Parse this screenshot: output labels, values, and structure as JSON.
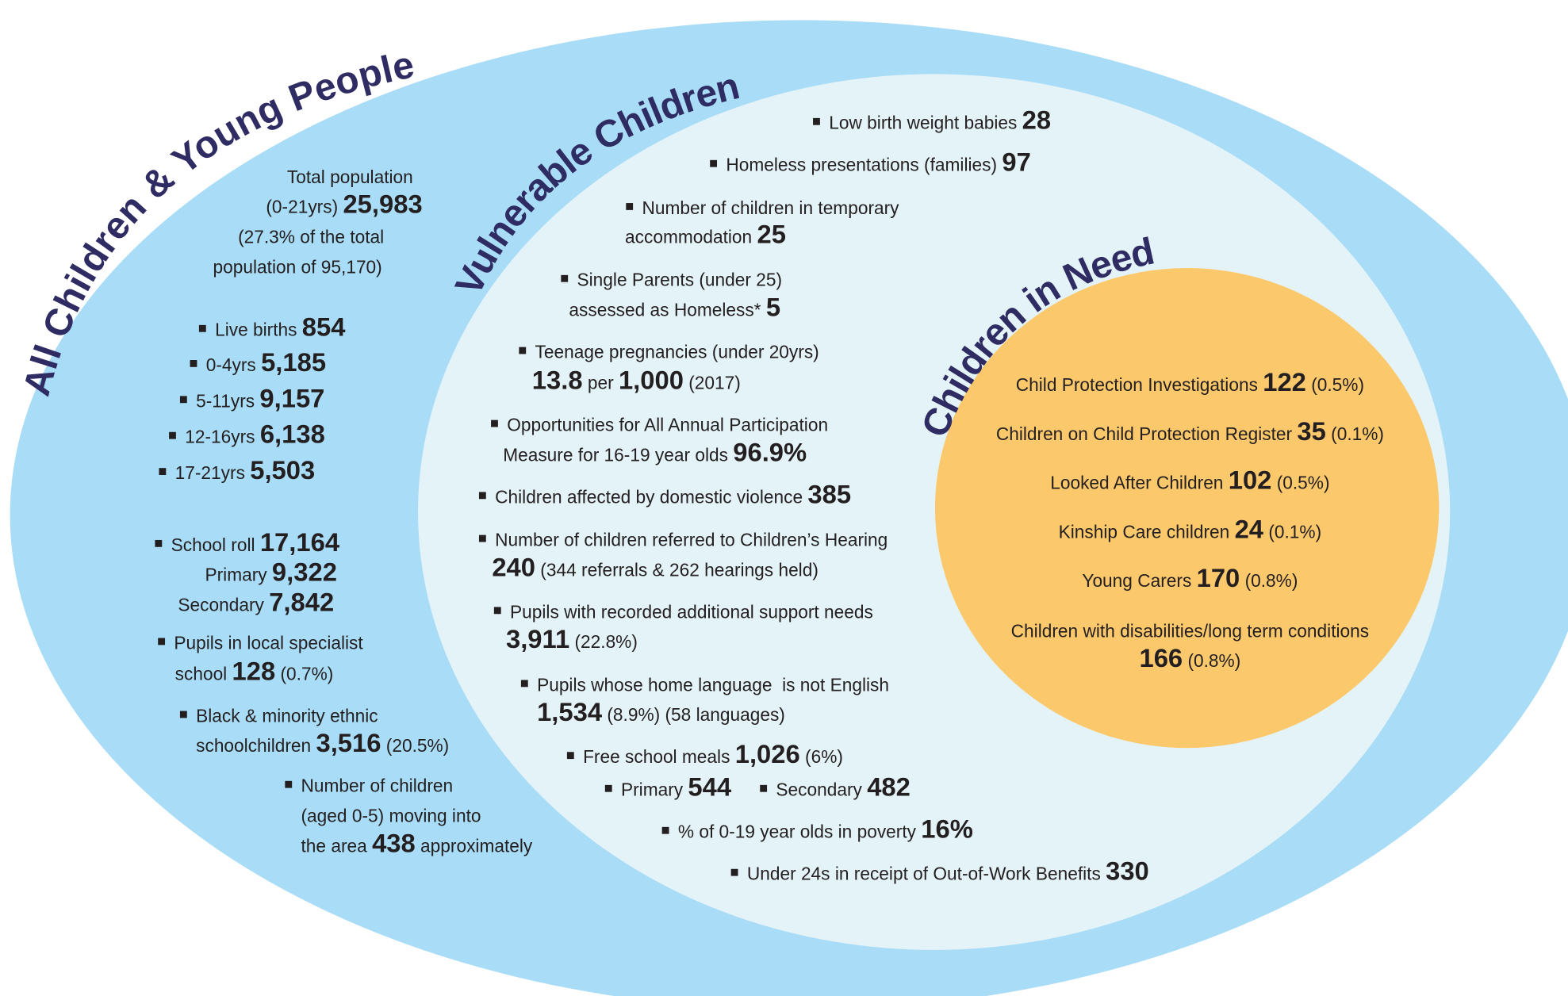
{
  "outer": {
    "title": "All Children & Young People",
    "items": [
      {
        "lines": [
          [
            "Total population"
          ],
          [
            "(0-21yrs) ",
            {
              "big": "25,983"
            }
          ],
          [
            "(27.3% of the total"
          ],
          [
            "population of 95,170)"
          ]
        ]
      },
      {
        "lines": [
          [
            "Live births ",
            {
              "big": "854"
            }
          ]
        ]
      },
      {
        "lines": [
          [
            "0-4yrs ",
            {
              "big": "5,185"
            }
          ]
        ]
      },
      {
        "lines": [
          [
            "5-11yrs ",
            {
              "big": "9,157"
            }
          ]
        ]
      },
      {
        "lines": [
          [
            "12-16yrs ",
            {
              "big": "6,138"
            }
          ]
        ]
      },
      {
        "lines": [
          [
            "17-21yrs ",
            {
              "big": "5,503"
            }
          ]
        ]
      },
      {
        "lines": [
          [
            "School roll ",
            {
              "big": "17,164"
            }
          ],
          [
            "Primary ",
            {
              "big": "9,322"
            }
          ],
          [
            "Secondary ",
            {
              "big": "7,842"
            }
          ]
        ]
      },
      {
        "lines": [
          [
            "Pupils in local specialist"
          ],
          [
            "school ",
            {
              "big": "128"
            },
            " (0.7%)"
          ]
        ]
      },
      {
        "lines": [
          [
            "Black & minority ethnic"
          ],
          [
            "schoolchildren ",
            {
              "big": "3,516"
            },
            " (20.5%)"
          ]
        ]
      },
      {
        "lines": [
          [
            "Number of children"
          ],
          [
            "(aged 0-5) moving into"
          ],
          [
            "the area ",
            {
              "big": "438"
            },
            " approximately"
          ]
        ]
      }
    ]
  },
  "middle": {
    "title": "Vulnerable Children",
    "items": [
      {
        "lines": [
          [
            "Low birth weight babies ",
            {
              "big": "28"
            }
          ]
        ]
      },
      {
        "lines": [
          [
            "Homeless presentations (families) ",
            {
              "big": "97"
            }
          ]
        ]
      },
      {
        "lines": [
          [
            "Number of children in temporary"
          ],
          [
            "accommodation ",
            {
              "big": "25"
            }
          ]
        ]
      },
      {
        "lines": [
          [
            "Single Parents (under 25)"
          ],
          [
            "assessed as Homeless* ",
            {
              "big": "5"
            }
          ]
        ]
      },
      {
        "lines": [
          [
            "Teenage pregnancies (under 20yrs)"
          ],
          [
            {
              "big": "13.8"
            },
            " per ",
            {
              "big": "1,000"
            },
            " (2017)"
          ]
        ]
      },
      {
        "lines": [
          [
            "Opportunities for All Annual Participation"
          ],
          [
            "Measure for 16-19 year olds ",
            {
              "big": "96.9%"
            }
          ]
        ]
      },
      {
        "lines": [
          [
            "Children affected by domestic violence ",
            {
              "big": "385"
            }
          ]
        ]
      },
      {
        "lines": [
          [
            "Number of children referred to Children’s Hearing"
          ],
          [
            {
              "big": "240"
            },
            " (344 referrals & 262 hearings held)"
          ]
        ]
      },
      {
        "lines": [
          [
            "Pupils with recorded additional support needs"
          ],
          [
            {
              "big": "3,911"
            },
            " (22.8%)"
          ]
        ]
      },
      {
        "lines": [
          [
            "Pupils whose home language  is not English"
          ],
          [
            {
              "big": "1,534"
            },
            " (8.9%) (58 languages)"
          ]
        ]
      },
      {
        "lines": [
          [
            "Free school meals ",
            {
              "big": "1,026"
            },
            " (6%)"
          ]
        ]
      },
      {
        "lines": [
          [
            "Primary ",
            {
              "big": "544"
            }
          ]
        ]
      },
      {
        "lines": [
          [
            "Secondary ",
            {
              "big": "482"
            }
          ]
        ]
      },
      {
        "lines": [
          [
            "% of 0-19 year olds in poverty ",
            {
              "big": "16%"
            }
          ]
        ]
      },
      {
        "lines": [
          [
            "Under 24s in receipt of Out-of-Work Benefits ",
            {
              "big": "330"
            }
          ]
        ]
      }
    ]
  },
  "inner": {
    "title": "Children in Need",
    "items": [
      {
        "lines": [
          [
            "Child Protection Investigations ",
            {
              "big": "122"
            },
            " (0.5%)"
          ]
        ]
      },
      {
        "lines": [
          [
            "Children on Child Protection Register ",
            {
              "big": "35"
            },
            " (0.1%)"
          ]
        ]
      },
      {
        "lines": [
          [
            "Looked After Children ",
            {
              "big": "102"
            },
            " (0.5%)"
          ]
        ]
      },
      {
        "lines": [
          [
            "Kinship Care children ",
            {
              "big": "24"
            },
            " (0.1%)"
          ]
        ]
      },
      {
        "lines": [
          [
            "Young Carers ",
            {
              "big": "170"
            },
            " (0.8%)"
          ]
        ]
      },
      {
        "lines": [
          [
            "Children with disabilities/long term conditions"
          ],
          [
            {
              "big": "166"
            },
            " (0.8%)"
          ]
        ]
      }
    ]
  }
}
